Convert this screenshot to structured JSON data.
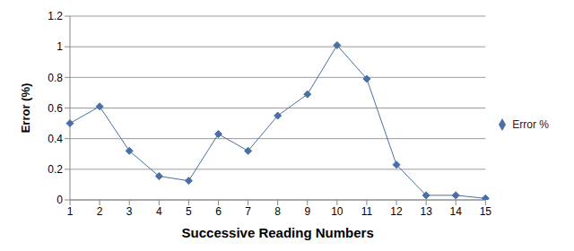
{
  "chart_data": {
    "type": "line",
    "x_label": "Successive Reading Numbers",
    "y_label": "Error (%)",
    "categories": [
      "1",
      "2",
      "3",
      "4",
      "5",
      "6",
      "7",
      "8",
      "9",
      "10",
      "11",
      "12",
      "13",
      "14",
      "15"
    ],
    "series": [
      {
        "name": "Error %",
        "color": "#4a6fa5",
        "marker": "diamond",
        "values": [
          0.5,
          0.61,
          0.32,
          0.155,
          0.125,
          0.43,
          0.32,
          0.55,
          0.69,
          1.01,
          0.79,
          0.23,
          0.03,
          0.03,
          0.01
        ]
      }
    ],
    "ylim": [
      0,
      1.2
    ],
    "yticks": [
      0,
      0.2,
      0.4,
      0.6,
      0.8,
      1,
      1.2
    ],
    "grid": true,
    "legend": "right"
  }
}
